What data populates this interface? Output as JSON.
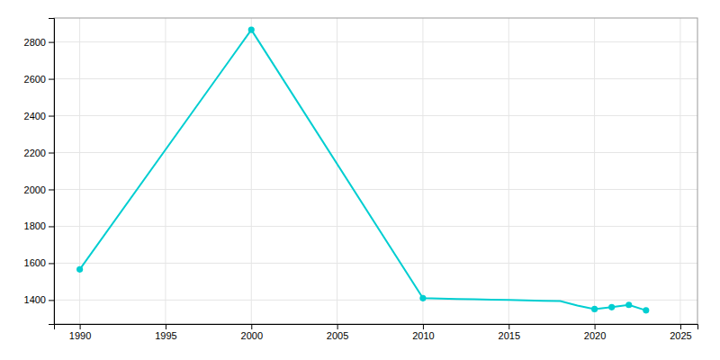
{
  "chart_data": {
    "type": "line",
    "x": [
      1990,
      2000,
      2010,
      2011,
      2012,
      2013,
      2014,
      2015,
      2016,
      2017,
      2018,
      2019,
      2020,
      2021,
      2022,
      2023
    ],
    "series": [
      {
        "type": "line",
        "color": "#00CED1",
        "values": [
          1566,
          2866,
          1410,
          1408,
          1406,
          1404,
          1402,
          1400,
          1398,
          1396,
          1394,
          1370,
          1351,
          1361,
          1374,
          1344
        ]
      },
      {
        "type": "scatter",
        "marker": "circle",
        "color": "#00CED1",
        "x": [
          1990,
          2000,
          2010,
          2020,
          2021,
          2022,
          2023
        ],
        "values": [
          1566,
          2866,
          1410,
          1351,
          1361,
          1374,
          1344
        ]
      }
    ],
    "xlim": [
      1988.5,
      2026
    ],
    "ylim": [
      1270,
      2930
    ],
    "xticks": [
      1990,
      1995,
      2000,
      2005,
      2010,
      2015,
      2020,
      2025
    ],
    "yticks": [
      1400,
      1600,
      1800,
      2000,
      2200,
      2400,
      2600,
      2800
    ],
    "grid": true
  }
}
